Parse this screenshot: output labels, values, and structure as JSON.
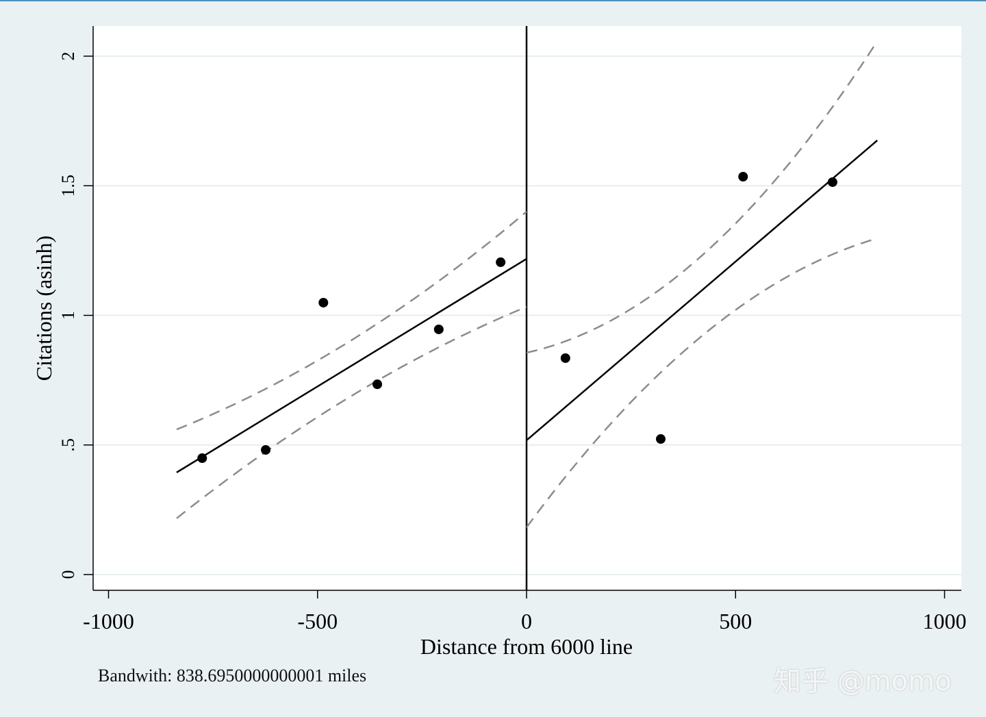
{
  "chart_data": {
    "type": "scatter",
    "title": "",
    "xlabel": "Distance from 6000 line",
    "ylabel": "Citations (asinh)",
    "xlim": [
      -1040,
      1040
    ],
    "ylim": [
      -0.06,
      2.12
    ],
    "xticks": [
      -1000,
      -500,
      0,
      500,
      1000
    ],
    "xtick_labels": [
      "-1000",
      "-500",
      "0",
      "500",
      "1000"
    ],
    "yticks": [
      0,
      0.5,
      1,
      1.5,
      2
    ],
    "ytick_labels": [
      "0",
      ".5",
      "1",
      "1.5",
      "2"
    ],
    "grid": "horizontal",
    "cutoff": 0,
    "points": {
      "x": [
        -776,
        -624,
        -486,
        -357,
        -210,
        -62,
        93,
        321,
        518,
        732
      ],
      "y": [
        0.449,
        0.481,
        1.049,
        0.734,
        0.946,
        1.205,
        0.835,
        0.523,
        1.535,
        1.514
      ]
    },
    "fits": [
      {
        "side": "left",
        "x": [
          -837,
          0
        ],
        "y": [
          0.394,
          1.218
        ],
        "ci_x": [
          -837,
          -418,
          0
        ],
        "ci_upper": [
          0.56,
          0.905,
          1.4
        ],
        "ci_lower": [
          0.217,
          0.69,
          1.033
        ]
      },
      {
        "side": "right",
        "x": [
          0,
          839
        ],
        "y": [
          0.518,
          1.675
        ],
        "ci_x": [
          0,
          419,
          839
        ],
        "ci_upper": [
          0.856,
          1.23,
          2.058
        ],
        "ci_lower": [
          0.182,
          0.92,
          1.297
        ]
      }
    ],
    "colors": {
      "points": "#000000",
      "fit": "#000000",
      "ci": "#8c8c8c",
      "grid": "#e6eef0",
      "background": "#eaf1f3",
      "plot_background": "#ffffff"
    }
  },
  "note": "Bandwith: 838.6950000000001 miles",
  "watermark": "知乎 @momo"
}
